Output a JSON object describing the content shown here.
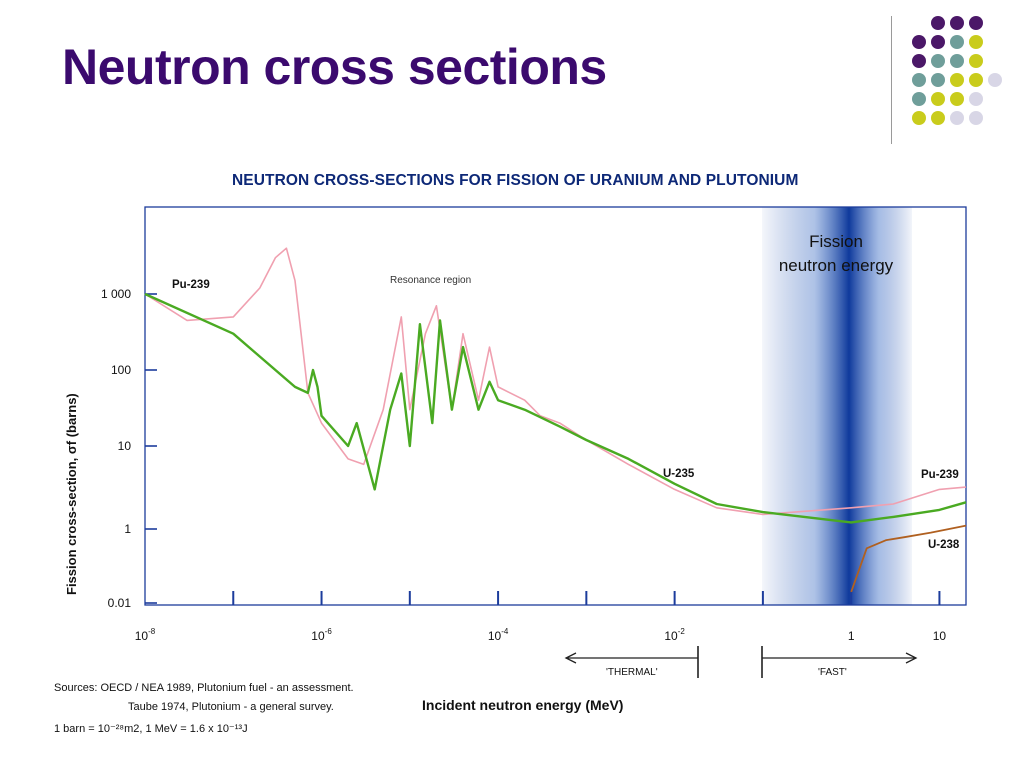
{
  "slide": {
    "title": "Neutron cross sections"
  },
  "decor": {
    "dot_colors": {
      "purple": "#4b1868",
      "teal": "#6f9e9a",
      "yellow": "#c9cc1c",
      "lavender": "#d8d6e6"
    }
  },
  "chart_data": {
    "type": "line",
    "title": "NEUTRON CROSS-SECTIONS FOR FISSION OF URANIUM AND PLUTONIUM",
    "ylabel": "Fission cross-section, σf (barns)",
    "xlabel": "Incident neutron energy (MeV)",
    "x_scale": "log",
    "y_scale": "log",
    "xlim": [
      1e-08,
      20
    ],
    "ylim": [
      0.01,
      10000
    ],
    "grid": false,
    "y_ticks": [
      {
        "value": 1000,
        "label": "1 000"
      },
      {
        "value": 100,
        "label": "100"
      },
      {
        "value": 10,
        "label": "10"
      },
      {
        "value": 1,
        "label": "1"
      },
      {
        "value": 0.01,
        "label": "0.01"
      }
    ],
    "x_ticks": [
      {
        "value": 1e-08,
        "base": "10",
        "exp": "-8"
      },
      {
        "value": 1e-06,
        "base": "10",
        "exp": "-6"
      },
      {
        "value": 0.0001,
        "base": "10",
        "exp": "-4"
      },
      {
        "value": 0.01,
        "base": "10",
        "exp": "-2"
      },
      {
        "value": 1,
        "base": "1",
        "exp": ""
      },
      {
        "value": 10,
        "base": "10",
        "exp": ""
      }
    ],
    "series": [
      {
        "name": "Pu-239",
        "color": "#f0a0b0",
        "points": [
          [
            1e-08,
            1000
          ],
          [
            3e-08,
            450
          ],
          [
            1e-07,
            500
          ],
          [
            2e-07,
            1200
          ],
          [
            3e-07,
            3000
          ],
          [
            4e-07,
            4000
          ],
          [
            5e-07,
            1500
          ],
          [
            7e-07,
            50
          ],
          [
            1e-06,
            20
          ],
          [
            2e-06,
            7
          ],
          [
            3e-06,
            6
          ],
          [
            5e-06,
            30
          ],
          [
            8e-06,
            500
          ],
          [
            1e-05,
            30
          ],
          [
            1.5e-05,
            300
          ],
          [
            2e-05,
            700
          ],
          [
            3e-05,
            30
          ],
          [
            4e-05,
            300
          ],
          [
            6e-05,
            40
          ],
          [
            8e-05,
            200
          ],
          [
            0.0001,
            60
          ],
          [
            0.0002,
            40
          ],
          [
            0.0003,
            25
          ],
          [
            0.0005,
            20
          ],
          [
            0.001,
            12
          ],
          [
            0.003,
            6
          ],
          [
            0.01,
            3
          ],
          [
            0.03,
            1.8
          ],
          [
            0.1,
            1.5
          ],
          [
            1,
            1.8
          ],
          [
            3,
            2
          ],
          [
            10,
            3
          ],
          [
            20,
            3.2
          ]
        ]
      },
      {
        "name": "U-235",
        "color": "#4aaa22",
        "points": [
          [
            1e-08,
            1000
          ],
          [
            1e-07,
            300
          ],
          [
            5e-07,
            60
          ],
          [
            7e-07,
            50
          ],
          [
            8e-07,
            100
          ],
          [
            9e-07,
            60
          ],
          [
            1e-06,
            25
          ],
          [
            2e-06,
            10
          ],
          [
            2.5e-06,
            20
          ],
          [
            4e-06,
            3
          ],
          [
            6e-06,
            30
          ],
          [
            8e-06,
            90
          ],
          [
            1e-05,
            10
          ],
          [
            1.3e-05,
            400
          ],
          [
            1.8e-05,
            20
          ],
          [
            2.2e-05,
            450
          ],
          [
            3e-05,
            30
          ],
          [
            4e-05,
            200
          ],
          [
            6e-05,
            30
          ],
          [
            8e-05,
            70
          ],
          [
            0.0001,
            40
          ],
          [
            0.0002,
            30
          ],
          [
            0.0005,
            18
          ],
          [
            0.001,
            12
          ],
          [
            0.003,
            7
          ],
          [
            0.01,
            3.5
          ],
          [
            0.03,
            2
          ],
          [
            0.1,
            1.6
          ],
          [
            1,
            1.2
          ],
          [
            3,
            1.4
          ],
          [
            10,
            1.7
          ],
          [
            20,
            2.1
          ]
        ]
      },
      {
        "name": "U-238",
        "color": "#b06020",
        "points": [
          [
            1,
            0.02
          ],
          [
            1.5,
            0.3
          ],
          [
            2.5,
            0.5
          ],
          [
            4,
            0.6
          ],
          [
            8,
            0.8
          ],
          [
            20,
            1.1
          ]
        ]
      }
    ],
    "annotations": {
      "resonance_region": "Resonance region",
      "fission_band": [
        "Fission",
        "neutron energy"
      ],
      "thermal": "'THERMAL'",
      "fast": "'FAST'",
      "pu239_left": "Pu-239",
      "pu239_right": "Pu-239",
      "u235": "U-235",
      "u238": "U-238"
    },
    "sources": {
      "line1": "Sources: OECD / NEA 1989, Plutonium fuel - an assessment.",
      "line2": "Taube 1974, Plutonium - a general survey.",
      "line3": "1 barn = 10⁻²⁸m2,  1 MeV = 1.6 x 10⁻¹³J"
    }
  }
}
